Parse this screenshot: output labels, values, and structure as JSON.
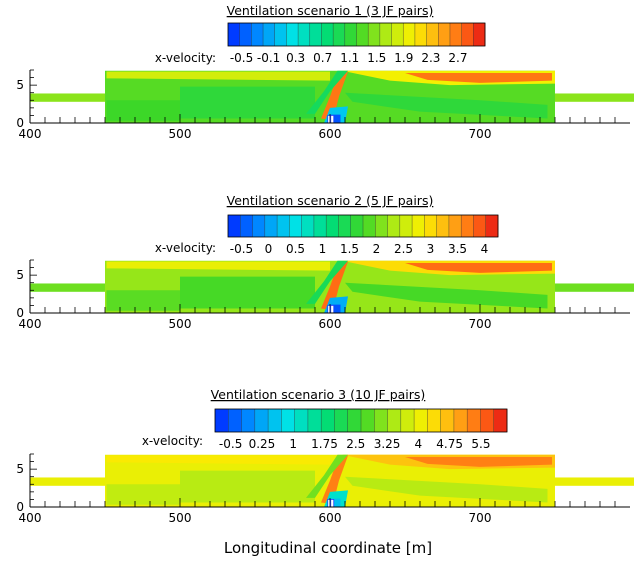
{
  "chart_data": {
    "type": "heatmap",
    "xlabel": "Longitudinal coordinate [m]",
    "xlim": [
      400,
      800
    ],
    "x_ticks": [
      400,
      500,
      600,
      700
    ],
    "color_variable": "x-velocity",
    "panels": [
      {
        "title": "Ventilation scenario 1 (3 JF pairs)",
        "colorbar_label": "x-velocity:",
        "colorbar_range": [
          -0.7,
          3.1
        ],
        "colorbar_ticks": [
          "-0.5",
          "-0.1",
          "0.3",
          "0.7",
          "1.1",
          "1.5",
          "1.9",
          "2.3",
          "2.7"
        ],
        "ylim": [
          0,
          7
        ],
        "y_ticks": [
          0,
          5
        ],
        "inlet_velocity": 1.5,
        "main_velocity": 1.3,
        "jet_velocity": 2.7,
        "wake_velocity": 0.9,
        "low_velocity": -0.5
      },
      {
        "title": "Ventilation scenario 2 (5 JF pairs)",
        "colorbar_label": "x-velocity:",
        "colorbar_range": [
          -0.75,
          4.25
        ],
        "colorbar_ticks": [
          "-0.5",
          "0",
          "0.5",
          "1",
          "1.5",
          "2",
          "2.5",
          "3",
          "3.5",
          "4"
        ],
        "ylim": [
          0,
          7
        ],
        "y_ticks": [
          0,
          5
        ],
        "inlet_velocity": 2.0,
        "main_velocity": 2.2,
        "jet_velocity": 3.8,
        "wake_velocity": 1.4,
        "low_velocity": -0.5
      },
      {
        "title": "Ventilation scenario 3 (10 JF pairs)",
        "colorbar_label": "x-velocity:",
        "colorbar_range": [
          -0.875,
          6.125
        ],
        "colorbar_ticks": [
          "-0.5",
          "0.25",
          "1",
          "1.75",
          "2.5",
          "3.25",
          "4",
          "4.75",
          "5.5"
        ],
        "ylim": [
          0,
          7
        ],
        "y_ticks": [
          0,
          5
        ],
        "inlet_velocity": 4.0,
        "main_velocity": 4.0,
        "jet_velocity": 5.3,
        "wake_velocity": 3.0,
        "low_velocity": 0.5
      }
    ]
  }
}
